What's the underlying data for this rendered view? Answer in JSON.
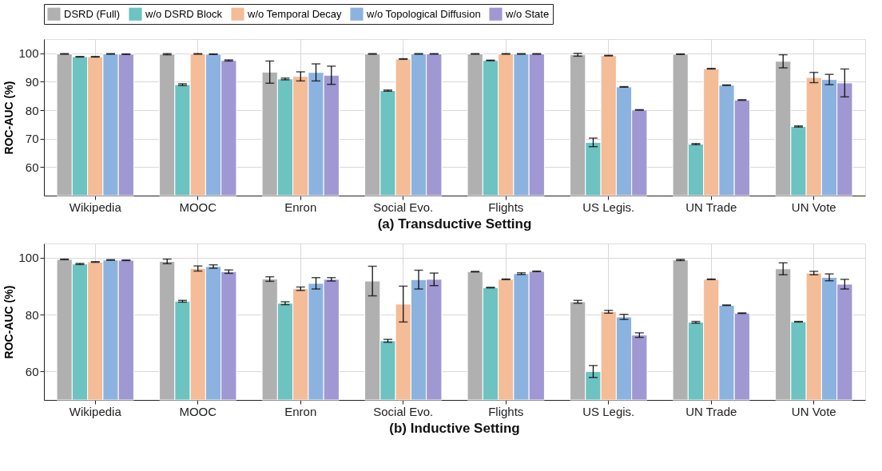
{
  "chart_data": [
    {
      "type": "bar",
      "title": "(a) Transductive Setting",
      "ylabel": "ROC-AUC (%)",
      "categories": [
        "Wikipedia",
        "MOOC",
        "Enron",
        "Social Evo.",
        "Flights",
        "US Legis.",
        "UN Trade",
        "UN Vote"
      ],
      "ylim": [
        50,
        105
      ],
      "yticks": [
        60,
        70,
        80,
        90,
        100
      ],
      "grid": true,
      "legend": "top",
      "series": [
        {
          "name": "DSRD (Full)",
          "color": "#b0b0b0",
          "values": [
            99.8,
            99.7,
            93.4,
            99.8,
            99.8,
            99.5,
            99.7,
            97.2
          ],
          "errors": [
            0.1,
            0.2,
            3.9,
            0.1,
            0.1,
            0.5,
            0.1,
            2.3
          ]
        },
        {
          "name": "w/o DSRD Block",
          "color": "#6cc3c1",
          "values": [
            98.8,
            89.0,
            91.0,
            86.9,
            97.5,
            68.7,
            68.1,
            74.3
          ],
          "errors": [
            0.1,
            0.3,
            0.3,
            0.2,
            0.1,
            1.5,
            0.2,
            0.2
          ]
        },
        {
          "name": "w/o Temporal Decay",
          "color": "#f4bc97",
          "values": [
            98.8,
            99.8,
            91.9,
            98.0,
            99.8,
            99.2,
            94.6,
            91.5
          ],
          "errors": [
            0.1,
            0.1,
            1.6,
            0.1,
            0.1,
            0.1,
            0.1,
            1.8
          ]
        },
        {
          "name": "w/o Topological Diffusion",
          "color": "#8cb3e0",
          "values": [
            99.8,
            99.7,
            93.3,
            99.8,
            99.8,
            88.2,
            88.8,
            90.8
          ],
          "errors": [
            0.1,
            0.1,
            3.0,
            0.1,
            0.1,
            0.1,
            0.1,
            1.8
          ]
        },
        {
          "name": "w/o State",
          "color": "#9f98d2",
          "values": [
            99.7,
            97.5,
            92.3,
            99.8,
            99.8,
            80.1,
            83.6,
            89.6
          ],
          "errors": [
            0.1,
            0.2,
            3.2,
            0.1,
            0.1,
            0.1,
            0.1,
            4.9
          ]
        }
      ]
    },
    {
      "type": "bar",
      "title": "(b) Inductive Setting",
      "ylabel": "ROC-AUC (%)",
      "categories": [
        "Wikipedia",
        "MOOC",
        "Enron",
        "Social Evo.",
        "Flights",
        "US Legis.",
        "UN Trade",
        "UN Vote"
      ],
      "ylim": [
        50,
        105
      ],
      "yticks": [
        60,
        80,
        100
      ],
      "grid": true,
      "series": [
        {
          "name": "DSRD (Full)",
          "color": "#b0b0b0",
          "values": [
            99.4,
            98.7,
            92.5,
            91.8,
            95.1,
            84.5,
            99.2,
            96.1
          ],
          "errors": [
            0.1,
            0.8,
            0.8,
            5.2,
            0.1,
            0.5,
            0.2,
            2.1
          ]
        },
        {
          "name": "w/o DSRD Block",
          "color": "#6cc3c1",
          "values": [
            97.8,
            84.7,
            84.0,
            70.8,
            89.5,
            60.0,
            77.3,
            77.5
          ],
          "errors": [
            0.2,
            0.3,
            0.5,
            0.5,
            0.1,
            2.1,
            0.3,
            0.1
          ]
        },
        {
          "name": "w/o Temporal Decay",
          "color": "#f4bc97",
          "values": [
            98.5,
            96.2,
            89.1,
            83.7,
            92.4,
            81.0,
            92.4,
            94.6
          ],
          "errors": [
            0.1,
            0.9,
            0.6,
            6.3,
            0.1,
            0.5,
            0.1,
            0.6
          ]
        },
        {
          "name": "w/o Topological Diffusion",
          "color": "#8cb3e0",
          "values": [
            99.2,
            96.9,
            91.0,
            92.3,
            94.4,
            79.2,
            83.3,
            93.1
          ],
          "errors": [
            0.1,
            0.6,
            2.0,
            3.3,
            0.3,
            0.9,
            0.1,
            1.2
          ]
        },
        {
          "name": "w/o State",
          "color": "#9f98d2",
          "values": [
            99.1,
            95.1,
            92.4,
            92.4,
            95.2,
            72.8,
            80.5,
            90.7
          ],
          "errors": [
            0.1,
            0.6,
            0.6,
            2.2,
            0.1,
            0.8,
            0.1,
            1.7
          ]
        }
      ]
    }
  ]
}
